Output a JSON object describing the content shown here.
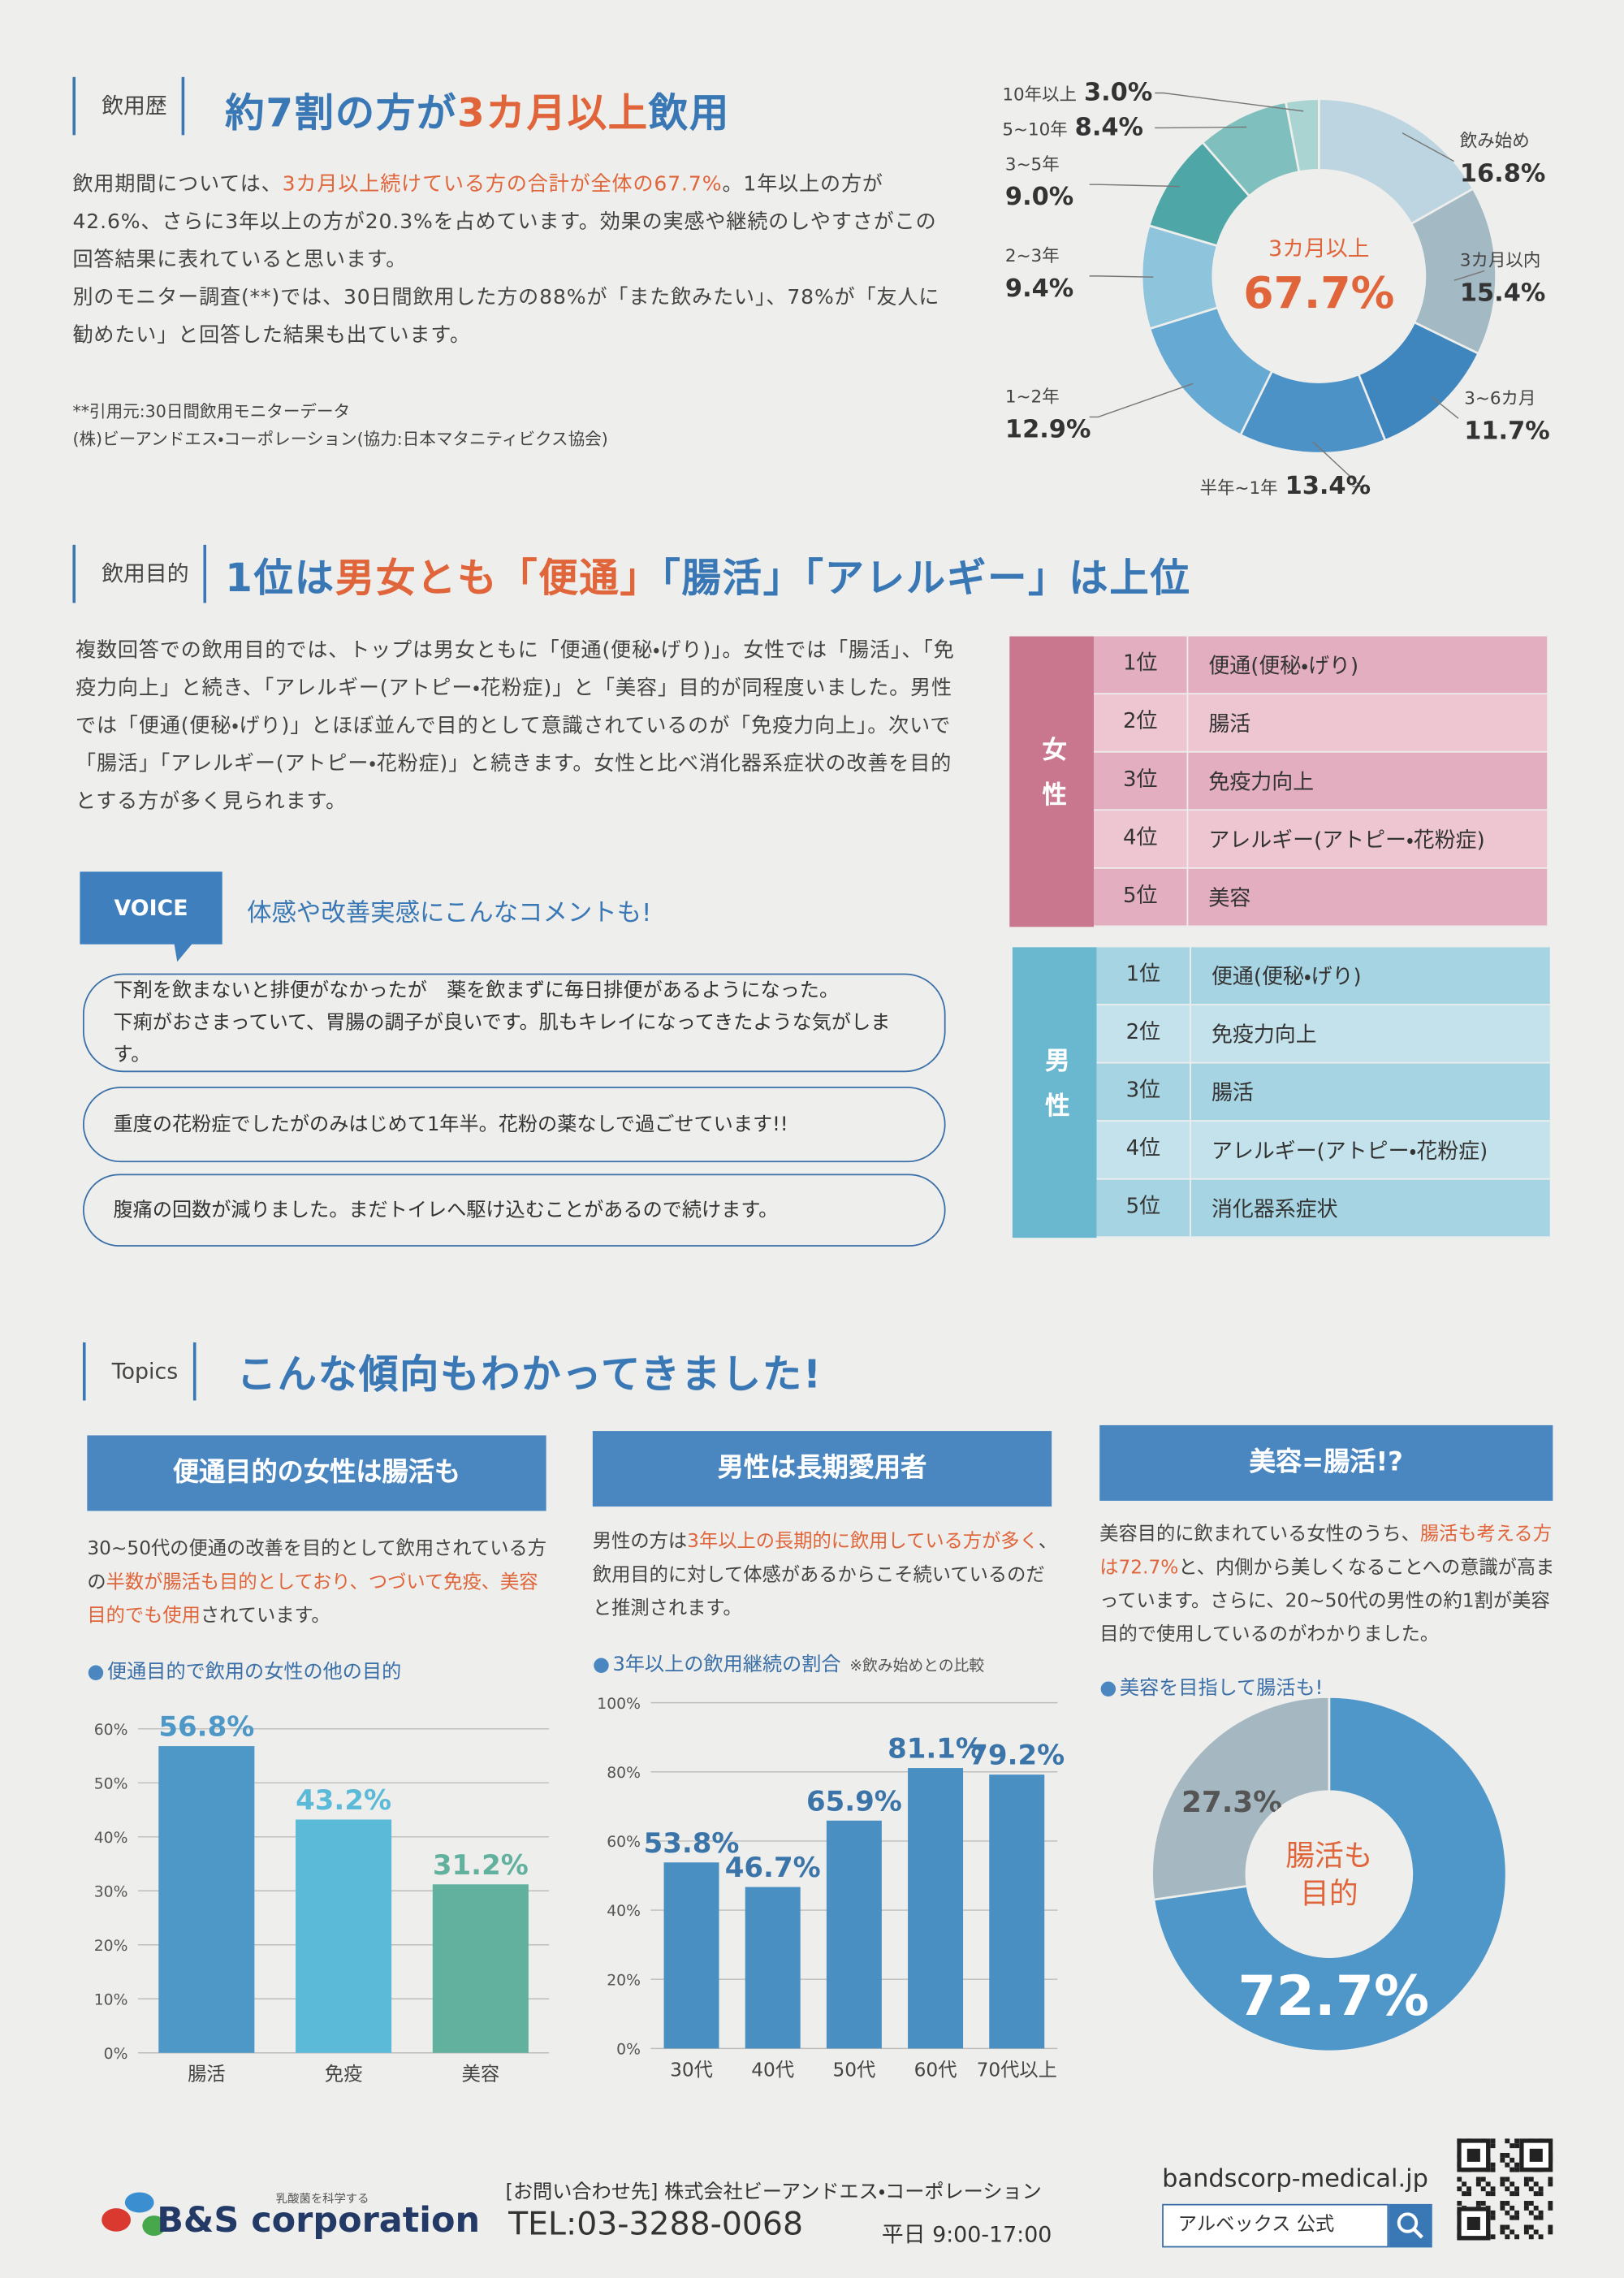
{
  "section1": {
    "label": "飲用歴",
    "heading": [
      "約7割の方が",
      "3カ月以上",
      "飲用"
    ],
    "body": [
      [
        "飲用期間については、",
        "3カ月以上続けている方の合計が全体の67.7%",
        "。1年以上の方が42.6%、さらに3年以上の方が20.3%を占めています。効果の実感や継続のしやすさがこの回答結果に表れていると思います。"
      ],
      [
        "別のモニター調査(**)では、30日間飲用した方の88%が「また飲みたい」、78%が「友人に勧めたい」と回答した結果も出ています。"
      ]
    ],
    "notes": [
      "**引用元:30日間飲用モニターデータ",
      "(株)ビーアンドエス・コーポレーション(協力:日本マタニティビクス協会)"
    ],
    "chart": {
      "type": "donut",
      "center_label": "3カ月以上",
      "center_value": "67.7%",
      "categories": [
        "飲み始め",
        "3カ月以内",
        "3~6カ月",
        "半年~1年",
        "1~2年",
        "2~3年",
        "3~5年",
        "5~10年",
        "10年以上"
      ],
      "values": [
        16.8,
        15.4,
        11.7,
        13.4,
        12.9,
        9.4,
        9.0,
        8.4,
        3.0
      ],
      "value_labels": [
        "16.8%",
        "15.4%",
        "11.7%",
        "13.4%",
        "12.9%",
        "9.4%",
        "9.0%",
        "8.4%",
        "3.0%"
      ],
      "colors": [
        "#bcd5e0",
        "#a3b9c4",
        "#3f86bf",
        "#4c92c7",
        "#66a9d3",
        "#8fc4dd",
        "#4ea6a7",
        "#7fc0be",
        "#a9d4d1"
      ]
    }
  },
  "section2": {
    "label": "飲用目的",
    "heading": [
      "1位は",
      "男女とも「便通」",
      "「腸活」「アレルギー」は上位"
    ],
    "body": "複数回答での飲用目的では、トップは男女ともに「便通(便秘・げり)」。女性では「腸活」、「免疫力向上」と続き、「アレルギー(アトピー・花粉症)」と「美容」目的が同程度いました。男性では「便通(便秘・げり)」とほぼ並んで目的として意識されているのが「免疫力向上」。次いで「腸活」「アレルギー(アトピー・花粉症)」と続きます。女性と比べ消化器系症状の改善を目的とする方が多く見られます。",
    "voice": {
      "tag": "VOICE",
      "title": "体感や改善実感にこんなコメントも!",
      "comments": [
        [
          "下剤を飲まないと排便がなかったが　薬を飲まずに毎日排便があるようになった。",
          "下痢がおさまっていて、胃腸の調子が良いです。肌もキレイになってきたような気がします。"
        ],
        [
          "重度の花粉症でしたがのみはじめて1年半。花粉の薬なしで過ごせています!!"
        ],
        [
          "腹痛の回数が減りました。まだトイレへ駆け込むことがあるので続けます。"
        ]
      ]
    },
    "rankings": [
      {
        "group": "女性",
        "rows": [
          [
            "1位",
            "便通(便秘・げり)"
          ],
          [
            "2位",
            "腸活"
          ],
          [
            "3位",
            "免疫力向上"
          ],
          [
            "4位",
            "アレルギー(アトピー・花粉症)"
          ],
          [
            "5位",
            "美容"
          ]
        ]
      },
      {
        "group": "男性",
        "rows": [
          [
            "1位",
            "便通(便秘・げり)"
          ],
          [
            "2位",
            "免疫力向上"
          ],
          [
            "3位",
            "腸活"
          ],
          [
            "4位",
            "アレルギー(アトピー・花粉症)"
          ],
          [
            "5位",
            "消化器系症状"
          ]
        ]
      }
    ]
  },
  "topics": {
    "label": "Topics",
    "heading": "こんな傾向もわかってきました!",
    "cards": [
      {
        "title": "便通目的の女性は腸活も",
        "body": [
          "30~50代の便通の改善を目的として飲用されている方の",
          "半数が腸活も目的としており、つづいて免疫、美容目的でも使用",
          "されています。"
        ],
        "chart": {
          "type": "bar",
          "title": "便通目的で飲用の女性の他の目的",
          "categories": [
            "腸活",
            "免疫",
            "美容"
          ],
          "values": [
            56.8,
            43.2,
            31.2
          ],
          "value_labels": [
            "56.8%",
            "43.2%",
            "31.2%"
          ],
          "colors": [
            "#4e98c8",
            "#5bbad8",
            "#62b09e"
          ],
          "ylim": [
            0,
            60
          ],
          "yticks": [
            {
              "value": 0,
              "label": "0%"
            },
            {
              "value": 10,
              "label": "10%"
            },
            {
              "value": 20,
              "label": "20%"
            },
            {
              "value": 30,
              "label": "30%"
            },
            {
              "value": 40,
              "label": "40%"
            },
            {
              "value": 50,
              "label": "50%"
            },
            {
              "value": 60,
              "label": "60%"
            }
          ],
          "grid": true
        }
      },
      {
        "title": "男性は長期愛用者",
        "body": [
          "男性の方は",
          "3年以上の長期的に飲用している方が多く",
          "、飲用目的に対して体感があるからこそ続いているのだと推測されます。"
        ],
        "chart": {
          "type": "bar",
          "title": "3年以上の飲用継続の割合",
          "note": "※飲み始めとの比較",
          "categories": [
            "30代",
            "40代",
            "50代",
            "60代",
            "70代以上"
          ],
          "values": [
            53.8,
            46.7,
            65.9,
            81.1,
            79.2
          ],
          "value_labels": [
            "53.8%",
            "46.7%",
            "65.9%",
            "81.1%",
            "79.2%"
          ],
          "color": "#4a8fc2",
          "ylim": [
            0,
            100
          ],
          "yticks": [
            {
              "value": 0,
              "label": "0%"
            },
            {
              "value": 20,
              "label": "20%"
            },
            {
              "value": 40,
              "label": "40%"
            },
            {
              "value": 60,
              "label": "60%"
            },
            {
              "value": 80,
              "label": "80%"
            },
            {
              "value": 100,
              "label": "100%"
            }
          ],
          "grid": true
        }
      },
      {
        "title": "美容=腸活!?",
        "body": [
          "美容目的に飲まれている女性のうち、",
          "腸活も考える方は72.7%",
          "と、内側から美しくなることへの意識が高まっています。さらに、20~50代の男性の約1割が美容目的で使用しているのがわかりました。"
        ],
        "chart": {
          "type": "donut",
          "title": "美容を目指して腸活も!",
          "center_label": [
            "腸活も",
            "目的"
          ],
          "values": [
            72.7,
            27.3
          ],
          "value_labels": [
            "72.7%",
            "27.3%"
          ],
          "colors": [
            "#4f97c9",
            "#a5b8c2"
          ]
        }
      }
    ]
  },
  "footer": {
    "tagline": "乳酸菌を科学する",
    "logo": "B&S corporation",
    "contact": "[お問い合わせ先] 株式会社ビーアンドエス・コーポレーション",
    "tel": "TEL:03-3288-0068",
    "hours": "平日 9:00-17:00",
    "url": "bandscorp-medical.jp",
    "search": "アルベックス 公式"
  }
}
